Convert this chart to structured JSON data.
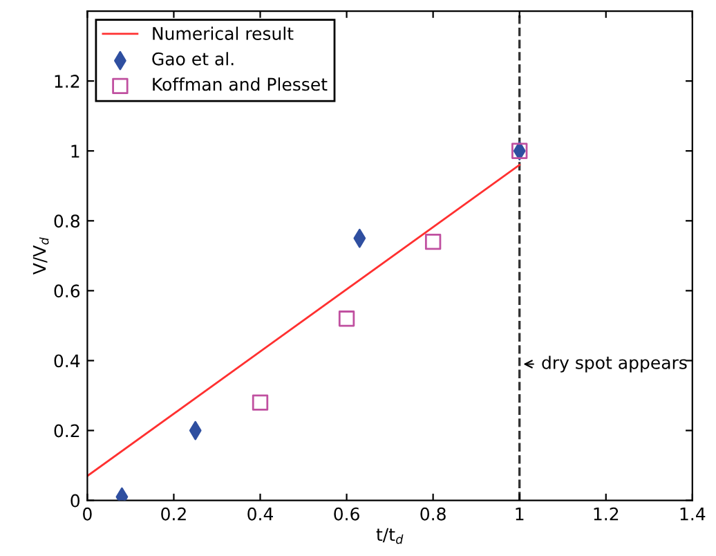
{
  "chart_data": {
    "type": "scatter",
    "xlabel": "t/t$_{d}$",
    "ylabel": "V/V$_{d}$",
    "xlim": [
      0,
      1.4
    ],
    "ylim": [
      0,
      1.4
    ],
    "xticks": [
      0,
      0.2,
      0.4,
      0.6,
      0.8,
      1,
      1.2,
      1.4
    ],
    "yticks": [
      0,
      0.2,
      0.4,
      0.6,
      0.8,
      1,
      1.2
    ],
    "series": [
      {
        "name": "Numerical result",
        "type": "line",
        "color": "#ff3030",
        "x": [
          0,
          1
        ],
        "values": [
          0.07,
          0.96
        ],
        "marker": "none",
        "line_style": "solid"
      },
      {
        "name": "Gao et al.",
        "color": "#2f4fa0",
        "x": [
          0.08,
          0.25,
          0.63,
          1.0
        ],
        "values": [
          0.01,
          0.2,
          0.75,
          1.0
        ],
        "marker": "diamond"
      },
      {
        "name": "Koffman and Plesset",
        "color": "#c050a0",
        "x": [
          0.4,
          0.6,
          0.8,
          1.0
        ],
        "values": [
          0.28,
          0.52,
          0.74,
          1.0
        ],
        "marker": "square"
      }
    ],
    "ref_lines": [
      {
        "axis": "x",
        "value": 1,
        "color": "#333333",
        "line_style": "dashed"
      }
    ],
    "annotations": [
      {
        "text": "dry spot appears",
        "x": 1,
        "y": 0.39
      }
    ],
    "legend": "top left",
    "grid": false
  }
}
